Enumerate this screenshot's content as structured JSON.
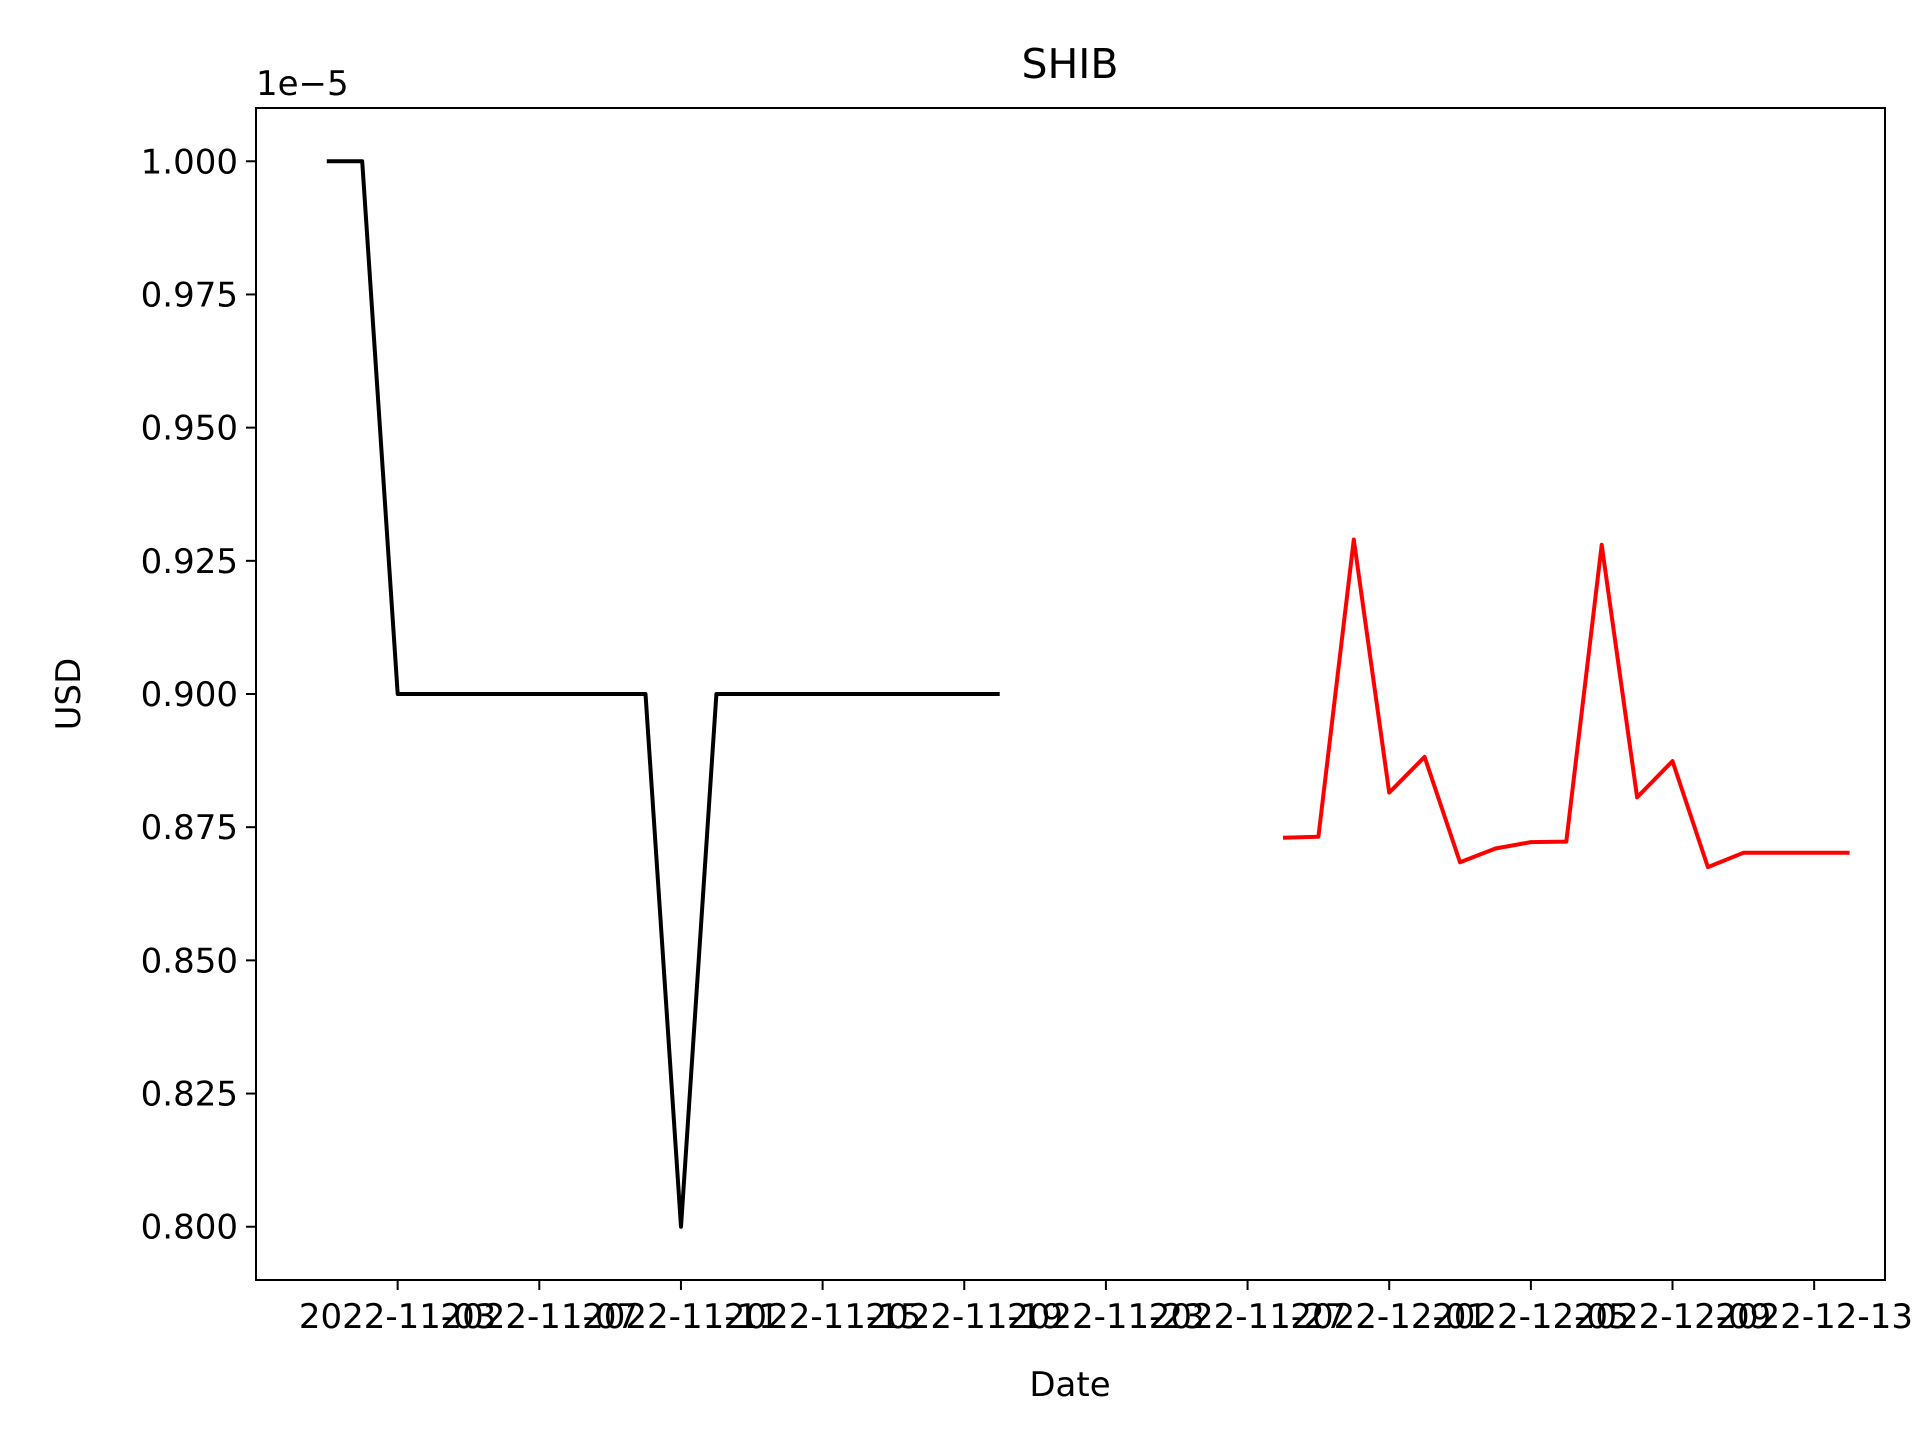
{
  "chart_data": {
    "type": "line",
    "title": "SHIB",
    "xlabel": "Date",
    "ylabel": "USD",
    "y_offset_label": "1e−5",
    "y_multiplier": 1e-05,
    "grid": false,
    "legend": "none",
    "xlim": [
      "2022-10-30",
      "2022-12-15"
    ],
    "ylim": [
      0.79,
      1.01
    ],
    "x_ticks": [
      "2022-11-03",
      "2022-11-07",
      "2022-11-11",
      "2022-11-15",
      "2022-11-19",
      "2022-11-23",
      "2022-11-27",
      "2022-12-01",
      "2022-12-05",
      "2022-12-09",
      "2022-12-13"
    ],
    "x_tick_labels": [
      "2022-11-03",
      "2022-11-07",
      "2022-11-11",
      "2022-11-15",
      "2022-11-19",
      "2022-11-23",
      "2022-11-27",
      "2022-12-01",
      "2022-12-05",
      "2022-12-09",
      "2022-12-13"
    ],
    "y_ticks": [
      0.8,
      0.825,
      0.85,
      0.875,
      0.9,
      0.925,
      0.95,
      0.975,
      1.0
    ],
    "y_tick_labels": [
      "0.800",
      "0.825",
      "0.850",
      "0.875",
      "0.900",
      "0.925",
      "0.950",
      "0.975",
      "1.000"
    ],
    "series": [
      {
        "color": "#000000",
        "x": [
          "2022-11-01",
          "2022-11-02",
          "2022-11-03",
          "2022-11-04",
          "2022-11-05",
          "2022-11-06",
          "2022-11-07",
          "2022-11-08",
          "2022-11-09",
          "2022-11-10",
          "2022-11-11",
          "2022-11-12",
          "2022-11-13",
          "2022-11-14",
          "2022-11-15",
          "2022-11-16",
          "2022-11-17",
          "2022-11-18",
          "2022-11-19",
          "2022-11-20"
        ],
        "y": [
          1.0,
          1.0,
          0.9,
          0.9,
          0.9,
          0.9,
          0.9,
          0.9,
          0.9,
          0.9,
          0.8,
          0.9,
          0.9,
          0.9,
          0.9,
          0.9,
          0.9,
          0.9,
          0.9,
          0.9
        ]
      },
      {
        "color": "#ff0000",
        "x": [
          "2022-11-28",
          "2022-11-29",
          "2022-11-30",
          "2022-12-01",
          "2022-12-02",
          "2022-12-03",
          "2022-12-04",
          "2022-12-05",
          "2022-12-06",
          "2022-12-07",
          "2022-12-08",
          "2022-12-09",
          "2022-12-10",
          "2022-12-11",
          "2022-12-12",
          "2022-12-13",
          "2022-12-14"
        ],
        "y": [
          0.873,
          0.8732,
          0.929,
          0.8815,
          0.8882,
          0.8684,
          0.871,
          0.8722,
          0.8723,
          0.928,
          0.8806,
          0.8874,
          0.8675,
          0.8702,
          0.8702,
          0.8702,
          0.8702
        ]
      }
    ]
  }
}
